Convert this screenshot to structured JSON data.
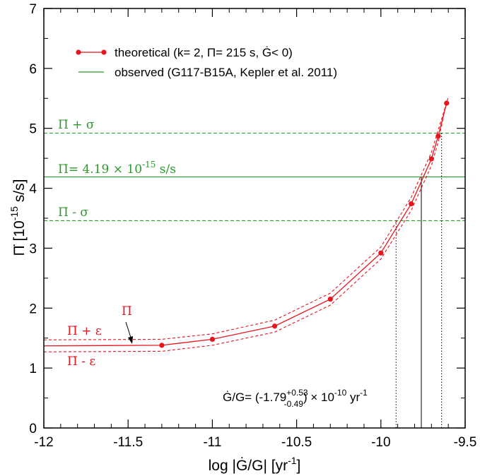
{
  "colors": {
    "theory": "#e8141e",
    "observed": "#2a9a2a",
    "axis": "#000000"
  },
  "chart_data": {
    "type": "line",
    "xlabel": "log |Ġ/G| [yr⁻¹]",
    "ylabel": "Π̇ [10⁻¹⁵ s/s]",
    "xlim": [
      -12,
      -9.5
    ],
    "ylim": [
      0,
      7
    ],
    "x_ticks": [
      -12,
      -11.5,
      -11,
      -10.5,
      -10,
      -9.5
    ],
    "x_tick_labels": [
      "-12",
      "-11.5",
      "-11",
      "-10.5",
      "-10",
      "-9.5"
    ],
    "y_ticks": [
      0,
      1,
      2,
      3,
      4,
      5,
      6,
      7
    ],
    "y_tick_labels": [
      "0",
      "1",
      "2",
      "3",
      "4",
      "5",
      "6",
      "7"
    ],
    "series": [
      {
        "name": "theoretical (k= 2, Π= 215 s, Ġ< 0)",
        "x": [
          -12,
          -11.3,
          -11,
          -10.63,
          -10.3,
          -10,
          -9.82,
          -9.7,
          -9.66,
          -9.61
        ],
        "y": [
          1.37,
          1.38,
          1.48,
          1.7,
          2.15,
          2.92,
          3.74,
          4.49,
          4.87,
          5.42
        ],
        "markers_x": [
          -11.3,
          -11,
          -10.63,
          -10.3,
          -10,
          -9.82,
          -9.7,
          -9.66,
          -9.61
        ],
        "markers_y": [
          1.38,
          1.48,
          1.7,
          2.15,
          2.92,
          3.74,
          4.49,
          4.87,
          5.42
        ]
      },
      {
        "name": "Π̇ + ε",
        "x": [
          -12,
          -11.3,
          -11,
          -10.63,
          -10.3,
          -10,
          -9.82,
          -9.7,
          -9.66,
          -9.6
        ],
        "y": [
          1.47,
          1.48,
          1.57,
          1.8,
          2.25,
          3.02,
          3.85,
          4.6,
          4.97,
          5.52
        ]
      },
      {
        "name": "Π̇ - ε",
        "x": [
          -12,
          -11.3,
          -11,
          -10.63,
          -10.3,
          -10,
          -9.82,
          -9.7,
          -9.66,
          -9.62
        ],
        "y": [
          1.27,
          1.28,
          1.38,
          1.6,
          2.05,
          2.82,
          3.63,
          4.38,
          4.77,
          5.32
        ]
      }
    ],
    "observed": {
      "name": "observed (G117-B15A, Kepler et al. 2011)",
      "value": 4.19,
      "upper": 4.92,
      "lower": 3.46
    },
    "vlines": [
      {
        "x": -9.91,
        "ymax": 3.46,
        "style": "dotted"
      },
      {
        "x": -9.76,
        "ymax": 4.19,
        "style": "solid"
      },
      {
        "x": -9.64,
        "ymax": 4.92,
        "style": "dotted"
      }
    ],
    "annotations": {
      "pi_plus_sigma": "Π̇ + σ",
      "pi_value_pre": "Π̇= 4.19 × 10",
      "pi_value_exp": "-15",
      "pi_value_post": " s/s",
      "pi_minus_sigma": "Π̇ - σ",
      "pi_plus_eps": "Π̇ + ε",
      "pi_minus_eps": "Π̇ - ε",
      "pi_dot": "Π̇",
      "gdot_pre": "Ġ/G= (-1.79",
      "gdot_sup": "+0.53",
      "gdot_sub": "-0.49",
      "gdot_post": ") × 10",
      "gdot_exp": "-10",
      "gdot_unit": " yr",
      "gdot_unit_exp": "-1"
    },
    "axis_text": {
      "x_pre": "log |Ġ/G| [yr",
      "x_exp": "-1",
      "x_post": "]",
      "y_pre": "Π̇ [10",
      "y_exp": "-15",
      "y_post": " s/s]"
    },
    "legend": [
      "theoretical (k= 2, Π= 215 s, Ġ< 0)",
      "observed (G117-B15A, Kepler et al. 2011)"
    ]
  }
}
